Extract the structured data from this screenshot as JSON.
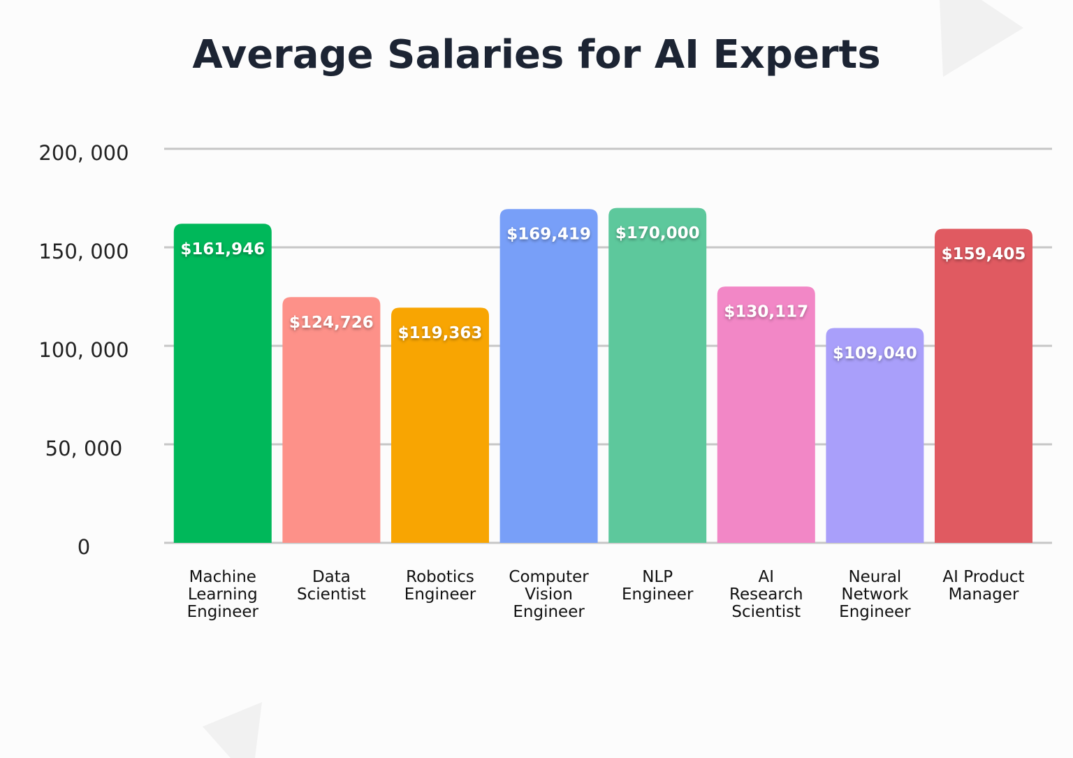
{
  "chart_data": {
    "type": "bar",
    "title": "Average Salaries for AI Experts",
    "categories": [
      "Machine\nLearning\nEngineer",
      "Data\nScientist",
      "Robotics\nEngineer",
      "Computer\nVision\nEngineer",
      "NLP\nEngineer",
      "AI\nResearch\nScientist",
      "Neural\nNetwork\nEngineer",
      "AI Product\nManager"
    ],
    "values": [
      161946,
      124726,
      119363,
      169419,
      170000,
      130117,
      109040,
      159405
    ],
    "value_labels": [
      "$161,946",
      "$124,726",
      "$119,363",
      "$169,419",
      "$170,000",
      "$130,117",
      "$109,040",
      "$159,405"
    ],
    "colors": [
      "#00b85a",
      "#fd9189",
      "#f8a502",
      "#789ff8",
      "#5dc89c",
      "#f287c6",
      "#a99ffa",
      "#e05a61"
    ],
    "ylim": [
      0,
      200000
    ],
    "yticks": [
      {
        "value": 0,
        "label": "0"
      },
      {
        "value": 50000,
        "label": "50, 000"
      },
      {
        "value": 100000,
        "label": "100, 000"
      },
      {
        "value": 150000,
        "label": "150, 000"
      },
      {
        "value": 200000,
        "label": "200, 000"
      }
    ],
    "grid": true
  }
}
